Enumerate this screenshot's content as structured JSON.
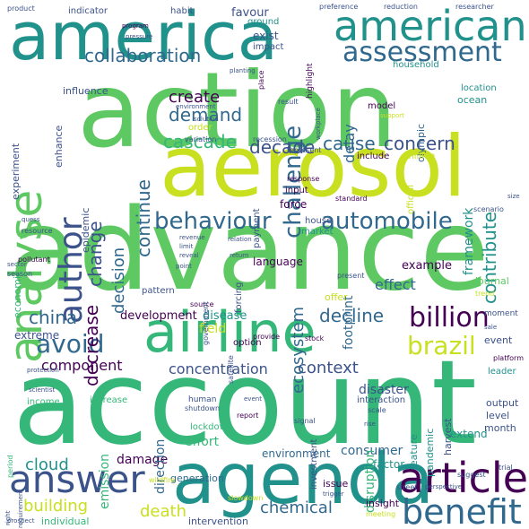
{
  "words": [
    {
      "text": "action",
      "color": "#5ec962"
    },
    {
      "text": "advance",
      "color": "#5ec962"
    },
    {
      "text": "account",
      "color": "#35b779"
    },
    {
      "text": "aerosol",
      "color": "#c8e020"
    },
    {
      "text": "america",
      "color": "#21918c"
    },
    {
      "text": "agenda",
      "color": "#21918c"
    },
    {
      "text": "airline",
      "color": "#35b779"
    },
    {
      "text": "american",
      "color": "#21918c"
    },
    {
      "text": "analyse",
      "color": "#5ec962"
    },
    {
      "text": "article",
      "color": "#440154"
    },
    {
      "text": "assessment",
      "color": "#31688e"
    },
    {
      "text": "answer",
      "color": "#3b528b"
    },
    {
      "text": "benefit",
      "color": "#31688e"
    },
    {
      "text": "author",
      "color": "#3b528b"
    },
    {
      "text": "automobile",
      "color": "#31688e"
    },
    {
      "text": "behaviour",
      "color": "#31688e"
    },
    {
      "text": "billion",
      "color": "#440154"
    },
    {
      "text": "brazil",
      "color": "#c8e020"
    },
    {
      "text": "avoid",
      "color": "#31688e"
    },
    {
      "text": "collaboration",
      "color": "#31688e"
    },
    {
      "text": "challenge",
      "color": "#31688e"
    },
    {
      "text": "cascade",
      "color": "#35b779"
    },
    {
      "text": "decade",
      "color": "#3b528b"
    },
    {
      "text": "cause",
      "color": "#31688e"
    },
    {
      "text": "concern",
      "color": "#3b528b"
    },
    {
      "text": "create",
      "color": "#440154"
    },
    {
      "text": "demand",
      "color": "#31688e"
    },
    {
      "text": "continue",
      "color": "#31688e"
    },
    {
      "text": "contribute",
      "color": "#21918c"
    },
    {
      "text": "change",
      "color": "#3b528b"
    },
    {
      "text": "decision",
      "color": "#31688e"
    },
    {
      "text": "decrease",
      "color": "#440154"
    },
    {
      "text": "china",
      "color": "#31688e"
    },
    {
      "text": "decline",
      "color": "#31688e"
    },
    {
      "text": "component",
      "color": "#440154"
    },
    {
      "text": "concentration",
      "color": "#3b528b"
    },
    {
      "text": "context",
      "color": "#3b528b"
    },
    {
      "text": "ecosystem",
      "color": "#31688e"
    },
    {
      "text": "effect",
      "color": "#31688e"
    },
    {
      "text": "example",
      "color": "#440154"
    },
    {
      "text": "footprint",
      "color": "#31688e"
    },
    {
      "text": "development",
      "color": "#440154"
    },
    {
      "text": "disease",
      "color": "#21918c"
    },
    {
      "text": "cloud",
      "color": "#21918c"
    },
    {
      "text": "damage",
      "color": "#440154"
    },
    {
      "text": "building",
      "color": "#c8e020"
    },
    {
      "text": "death",
      "color": "#c8e020"
    },
    {
      "text": "chemical",
      "color": "#31688e"
    },
    {
      "text": "consumer",
      "color": "#31688e"
    },
    {
      "text": "environment",
      "color": "#31688e"
    },
    {
      "text": "effort",
      "color": "#35b779"
    },
    {
      "text": "emission",
      "color": "#35b779"
    },
    {
      "text": "direction",
      "color": "#31688e"
    },
    {
      "text": "disaster",
      "color": "#3b528b"
    },
    {
      "text": "disruption",
      "color": "#35b779"
    },
    {
      "text": "delay",
      "color": "#31688e"
    },
    {
      "text": "framework",
      "color": "#21918c"
    },
    {
      "text": "force",
      "color": "#440154"
    },
    {
      "text": "language",
      "color": "#440154"
    },
    {
      "text": "field",
      "color": "#c8e020"
    },
    {
      "text": "extreme",
      "color": "#3b528b"
    },
    {
      "text": "economic",
      "color": "#35b779"
    },
    {
      "text": "epidemic",
      "color": "#3b528b"
    },
    {
      "text": "enhance",
      "color": "#3b528b"
    },
    {
      "text": "experiment",
      "color": "#3b528b"
    },
    {
      "text": "influence",
      "color": "#3b528b"
    },
    {
      "text": "generation",
      "color": "#31688e"
    },
    {
      "text": "factor",
      "color": "#21918c"
    },
    {
      "text": "extend",
      "color": "#21918c"
    },
    {
      "text": "feature",
      "color": "#21918c"
    },
    {
      "text": "pandemic",
      "color": "#21918c"
    },
    {
      "text": "harvest",
      "color": "#3b528b"
    },
    {
      "text": "output",
      "color": "#3b528b"
    },
    {
      "text": "level",
      "color": "#3b528b"
    },
    {
      "text": "month",
      "color": "#3b528b"
    },
    {
      "text": "interaction",
      "color": "#3b528b"
    },
    {
      "text": "leader",
      "color": "#21918c"
    },
    {
      "text": "journal",
      "color": "#5ec962"
    },
    {
      "text": "event",
      "color": "#3b528b"
    },
    {
      "text": "investment",
      "color": "#3b528b"
    },
    {
      "text": "issue",
      "color": "#440154"
    },
    {
      "text": "individual",
      "color": "#35b779"
    },
    {
      "text": "intervention",
      "color": "#3b528b"
    },
    {
      "text": "insight",
      "color": "#440154"
    },
    {
      "text": "increase",
      "color": "#35b779"
    },
    {
      "text": "income",
      "color": "#35b779"
    },
    {
      "text": "lockdown",
      "color": "#35b779"
    },
    {
      "text": "forcing",
      "color": "#3b528b"
    },
    {
      "text": "pattern",
      "color": "#3b528b"
    },
    {
      "text": "option",
      "color": "#440154"
    },
    {
      "text": "offer",
      "color": "#c8e020"
    },
    {
      "text": "exist",
      "color": "#3b528b"
    },
    {
      "text": "impact",
      "color": "#3b528b"
    },
    {
      "text": "favour",
      "color": "#3b528b"
    },
    {
      "text": "ground",
      "color": "#21918c"
    },
    {
      "text": "habit",
      "color": "#3b528b"
    },
    {
      "text": "indicator",
      "color": "#3b528b"
    },
    {
      "text": "model",
      "color": "#440154"
    },
    {
      "text": "olympic",
      "color": "#31688e"
    },
    {
      "text": "ocean",
      "color": "#21918c"
    },
    {
      "text": "location",
      "color": "#21918c"
    },
    {
      "text": "household",
      "color": "#21918c"
    },
    {
      "text": "include",
      "color": "#440154"
    },
    {
      "text": "million",
      "color": "#c8e020"
    },
    {
      "text": "official",
      "color": "#c8e020"
    },
    {
      "text": "input",
      "color": "#440154"
    },
    {
      "text": "house",
      "color": "#3b528b"
    },
    {
      "text": "market",
      "color": "#21918c"
    },
    {
      "text": "order",
      "color": "#c8e020"
    },
    {
      "text": "payment",
      "color": "#3b528b"
    },
    {
      "text": "highlight",
      "color": "#440154"
    },
    {
      "text": "moment",
      "color": "#3b528b"
    },
    {
      "text": "human",
      "color": "#3b528b"
    },
    {
      "text": "shutdown",
      "color": "#3b528b"
    },
    {
      "text": "report",
      "color": "#440154"
    },
    {
      "text": "place",
      "color": "#440154"
    },
    {
      "text": "result",
      "color": "#3b528b"
    },
    {
      "text": "variation",
      "color": "#3b528b"
    },
    {
      "text": "recession",
      "color": "#3b528b"
    },
    {
      "text": "represent",
      "color": "#3b528b"
    },
    {
      "text": "response",
      "color": "#440154"
    },
    {
      "text": "standard",
      "color": "#440154"
    },
    {
      "text": "scale",
      "color": "#3b528b"
    },
    {
      "text": "source",
      "color": "#440154"
    },
    {
      "text": "government",
      "color": "#3b528b"
    },
    {
      "text": "present",
      "color": "#3b528b"
    },
    {
      "text": "scenario",
      "color": "#3b528b"
    },
    {
      "text": "trend",
      "color": "#c8e020"
    },
    {
      "text": "platform",
      "color": "#440154"
    },
    {
      "text": "provide",
      "color": "#440154"
    },
    {
      "text": "satellite",
      "color": "#3b528b"
    },
    {
      "text": "stock",
      "color": "#440154"
    },
    {
      "text": "signal",
      "color": "#3b528b"
    },
    {
      "text": "street",
      "color": "#3b528b"
    },
    {
      "text": "suggest",
      "color": "#3b528b"
    },
    {
      "text": "trial",
      "color": "#3b528b"
    },
    {
      "text": "slowdown",
      "color": "#c8e020"
    },
    {
      "text": "meeting",
      "color": "#c8e020"
    },
    {
      "text": "wildfire",
      "color": "#c8e020"
    },
    {
      "text": "season",
      "color": "#3b528b"
    },
    {
      "text": "resource",
      "color": "#3b528b"
    },
    {
      "text": "pollutant",
      "color": "#440154"
    },
    {
      "text": "period",
      "color": "#35b779"
    },
    {
      "text": "reduction",
      "color": "#3b528b"
    },
    {
      "text": "researcher",
      "color": "#3b528b"
    },
    {
      "text": "preference",
      "color": "#3b528b"
    },
    {
      "text": "product",
      "color": "#3b528b"
    },
    {
      "text": "program",
      "color": "#440154"
    },
    {
      "text": "pressure",
      "color": "#3b528b"
    },
    {
      "text": "planting",
      "color": "#3b528b"
    },
    {
      "text": "solution",
      "color": "#3b528b"
    },
    {
      "text": "workplace",
      "color": "#3b528b"
    },
    {
      "text": "support",
      "color": "#c8e020"
    },
    {
      "text": "protection",
      "color": "#3b528b"
    },
    {
      "text": "right",
      "color": "#3b528b"
    },
    {
      "text": "requirement",
      "color": "#3b528b"
    },
    {
      "text": "prospect",
      "color": "#3b528b"
    },
    {
      "text": "quess",
      "color": "#3b528b"
    },
    {
      "text": "scientist",
      "color": "#3b528b"
    },
    {
      "text": "revenue",
      "color": "#3b528b"
    },
    {
      "text": "limit",
      "color": "#3b528b"
    },
    {
      "text": "reveal",
      "color": "#3b528b"
    },
    {
      "text": "return",
      "color": "#3b528b"
    },
    {
      "text": "relation",
      "color": "#3b528b"
    },
    {
      "text": "trigger",
      "color": "#3b528b"
    },
    {
      "text": "perspective",
      "color": "#3b528b"
    },
    {
      "text": "sector",
      "color": "#3b528b"
    },
    {
      "text": "sale",
      "color": "#3b528b"
    },
    {
      "text": "event",
      "color": "#3b528b"
    },
    {
      "text": "rise",
      "color": "#3b528b"
    },
    {
      "text": "point",
      "color": "#3b528b"
    },
    {
      "text": "size",
      "color": "#3b528b"
    },
    {
      "text": "environment",
      "color": "#3b528b"
    }
  ]
}
